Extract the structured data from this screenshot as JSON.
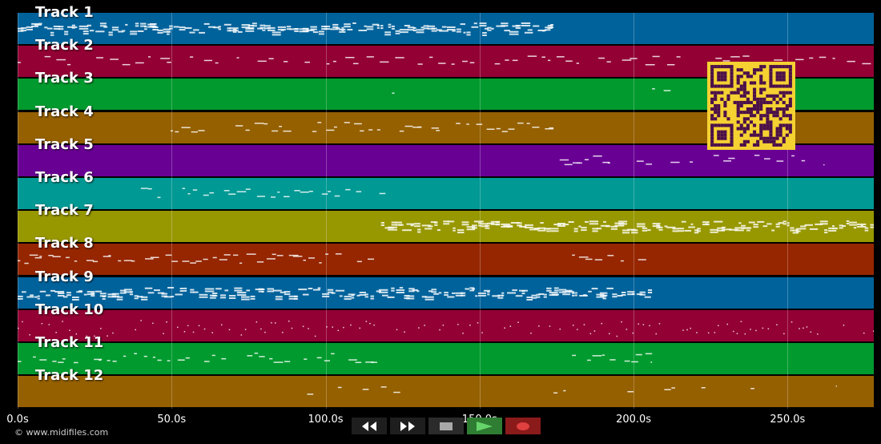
{
  "tracks": [
    {
      "name": "Track 1",
      "color": "#00629b",
      "segments": [
        [
          0,
          174
        ]
      ],
      "dense": "high"
    },
    {
      "name": "Track 2",
      "color": "#930034",
      "segments": [
        [
          0,
          278
        ]
      ],
      "dense": "low"
    },
    {
      "name": "Track 3",
      "color": "#009a2e",
      "segments": [
        [
          118,
          126
        ],
        [
          206,
          214
        ]
      ],
      "dense": "low"
    },
    {
      "name": "Track 4",
      "color": "#956000",
      "segments": [
        [
          40,
          120
        ],
        [
          124,
          174
        ]
      ],
      "dense": "mid"
    },
    {
      "name": "Track 5",
      "color": "#690094",
      "segments": [
        [
          176,
          206
        ],
        [
          212,
          262
        ]
      ],
      "dense": "mid"
    },
    {
      "name": "Track 6",
      "color": "#009994",
      "segments": [
        [
          40,
          120
        ]
      ],
      "dense": "mid"
    },
    {
      "name": "Track 7",
      "color": "#979700",
      "segments": [
        [
          118,
          278
        ]
      ],
      "dense": "high"
    },
    {
      "name": "Track 8",
      "color": "#952600",
      "segments": [
        [
          0,
          118
        ],
        [
          180,
          206
        ]
      ],
      "dense": "mid"
    },
    {
      "name": "Track 9",
      "color": "#00629b",
      "segments": [
        [
          0,
          206
        ]
      ],
      "dense": "high"
    },
    {
      "name": "Track 10",
      "color": "#930034",
      "segments": [
        [
          0,
          278
        ]
      ],
      "dense": "dots"
    },
    {
      "name": "Track 11",
      "color": "#009a2e",
      "segments": [
        [
          0,
          118
        ],
        [
          180,
          206
        ]
      ],
      "dense": "mid"
    },
    {
      "name": "Track 12",
      "color": "#956000",
      "segments": [
        [
          94,
          96
        ],
        [
          104,
          106
        ],
        [
          112,
          114
        ],
        [
          118,
          126
        ],
        [
          174,
          178
        ],
        [
          198,
          200
        ],
        [
          206,
          214
        ],
        [
          222,
          224
        ],
        [
          238,
          240
        ],
        [
          262,
          266
        ]
      ],
      "dense": "low"
    }
  ],
  "timeline": {
    "duration": 278,
    "ticks": [
      {
        "value": 0,
        "label": "0.0s"
      },
      {
        "value": 50,
        "label": "50.0s"
      },
      {
        "value": 100,
        "label": "100.0s"
      },
      {
        "value": 150,
        "label": "150.0s"
      },
      {
        "value": 200,
        "label": "200.0s"
      },
      {
        "value": 250,
        "label": "250.0s"
      }
    ]
  },
  "footer": {
    "copyright": "© www.midifiles.com"
  },
  "transport": {
    "rewind_icon": "rewind-icon",
    "forward_icon": "fast-forward-icon",
    "stop_icon": "stop-icon",
    "play_icon": "play-icon",
    "record_icon": "record-icon",
    "play_color": "#2e7d32",
    "record_color": "#8b1a1a"
  },
  "qr": {
    "fg": "#4a0f4a",
    "bg": "#f5d132"
  }
}
